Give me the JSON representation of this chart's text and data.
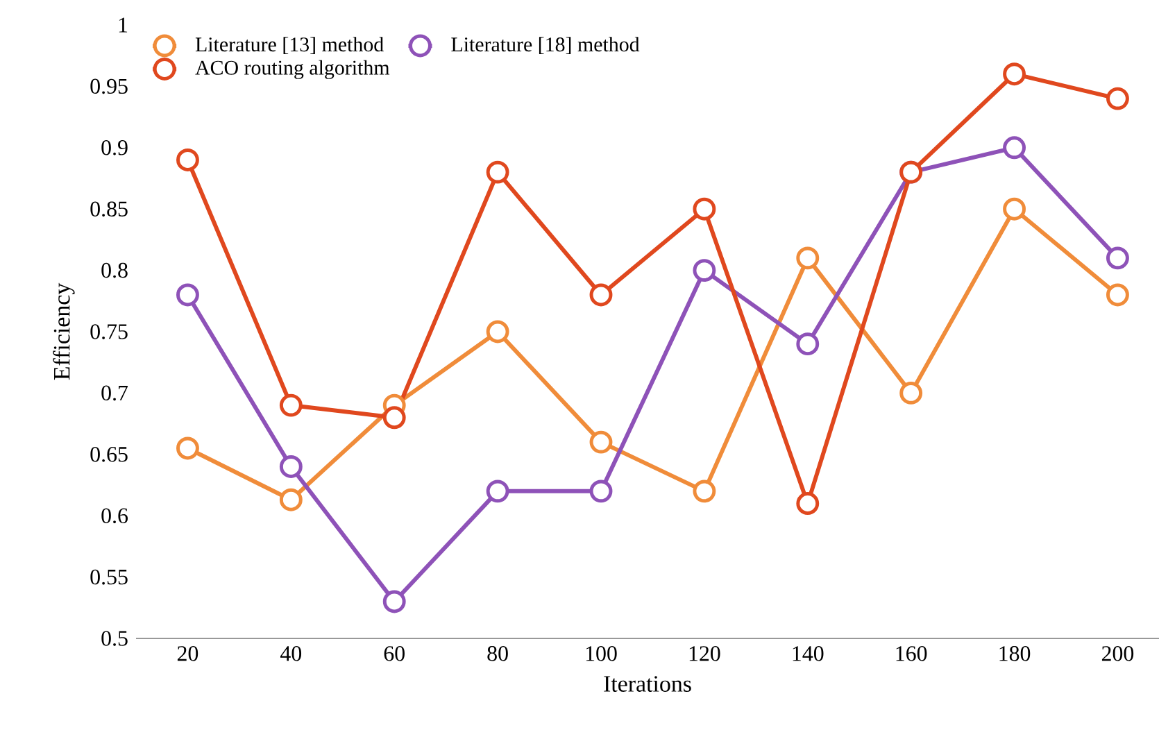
{
  "chart_data": {
    "type": "line",
    "xlabel": "Iterations",
    "ylabel": "Efficiency",
    "categories": [
      "20",
      "40",
      "60",
      "80",
      "100",
      "120",
      "140",
      "160",
      "180",
      "200"
    ],
    "series": [
      {
        "name": "Literature [13] method",
        "color": "#f08c3a",
        "values": [
          0.655,
          0.613,
          0.69,
          0.75,
          0.66,
          0.62,
          0.81,
          0.7,
          0.85,
          0.78
        ]
      },
      {
        "name": "Literature [18] method",
        "color": "#8e52b8",
        "values": [
          0.78,
          0.64,
          0.53,
          0.62,
          0.62,
          0.8,
          0.74,
          0.88,
          0.9,
          0.81
        ]
      },
      {
        "name": "ACO routing algorithm",
        "color": "#e0481e",
        "values": [
          0.89,
          0.69,
          0.68,
          0.88,
          0.78,
          0.85,
          0.61,
          0.88,
          0.96,
          0.94
        ]
      }
    ],
    "ylim": [
      0.5,
      1
    ],
    "yticks": [
      0.5,
      0.55,
      0.6,
      0.65,
      0.7,
      0.75,
      0.8,
      0.85,
      0.9,
      0.95,
      1
    ],
    "legend": "top left",
    "marker": "circle",
    "line_style": "solid",
    "grid": false
  }
}
